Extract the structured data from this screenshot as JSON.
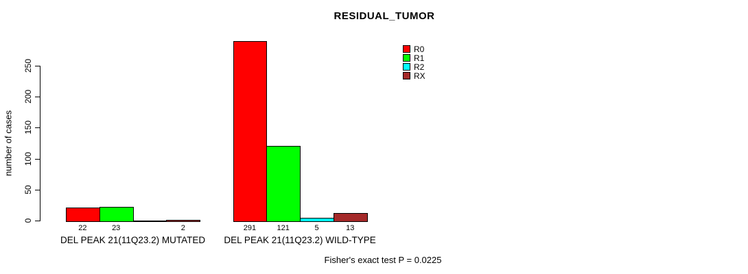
{
  "title": "RESIDUAL_TUMOR",
  "footer": "Fisher's exact test P = 0.0225",
  "chart_data": {
    "type": "bar",
    "title": "RESIDUAL_TUMOR",
    "xlabel": "",
    "ylabel": "number of cases",
    "ylim": [
      0,
      291
    ],
    "yticks": [
      0,
      50,
      100,
      150,
      200,
      250
    ],
    "grid": false,
    "legend_position": "top-right",
    "legend": [
      {
        "name": "R0",
        "color": "#ff0000"
      },
      {
        "name": "R1",
        "color": "#00ff00"
      },
      {
        "name": "R2",
        "color": "#00ffff"
      },
      {
        "name": "RX",
        "color": "#a52a2a"
      }
    ],
    "categories": [
      "DEL PEAK 21(11Q23.2) MUTATED",
      "DEL PEAK 21(11Q23.2) WILD-TYPE"
    ],
    "groups": [
      {
        "label": "DEL PEAK 21(11Q23.2) MUTATED",
        "values": [
          22,
          23,
          0,
          2
        ],
        "shown_value_labels": [
          "22",
          "23",
          "",
          "2"
        ]
      },
      {
        "label": "DEL PEAK 21(11Q23.2) WILD-TYPE",
        "values": [
          291,
          121,
          5,
          13
        ],
        "shown_value_labels": [
          "291",
          "121",
          "5",
          "13"
        ]
      }
    ],
    "annotation": "Fisher's exact test P = 0.0225"
  }
}
